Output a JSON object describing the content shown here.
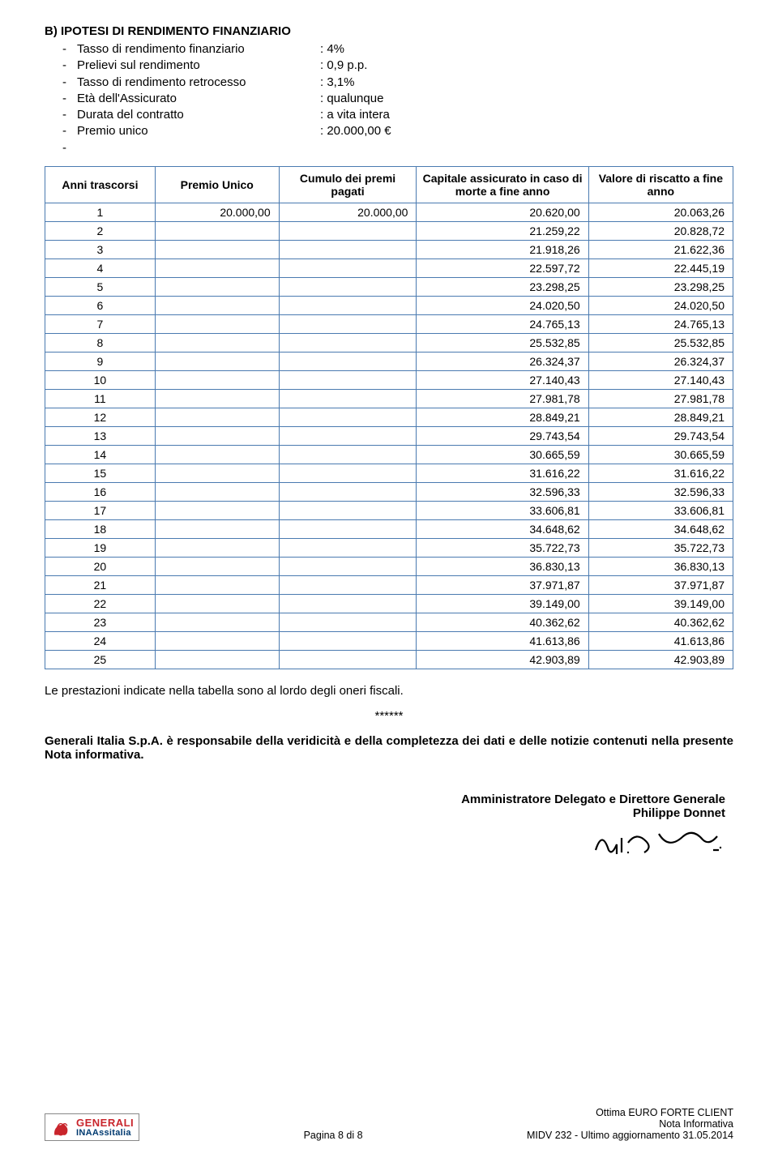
{
  "colors": {
    "border": "#4a7ab0",
    "text": "#000000",
    "background": "#ffffff",
    "logo_red": "#c9252c",
    "logo_blue": "#003a70"
  },
  "section_title": "B) IPOTESI DI RENDIMENTO FINANZIARIO",
  "assumptions": [
    {
      "bullet": "-",
      "label": "Tasso di rendimento finanziario",
      "value": ": 4%"
    },
    {
      "bullet": "-",
      "label": "Prelievi sul rendimento",
      "value": ": 0,9 p.p."
    },
    {
      "bullet": "-",
      "label": "Tasso di rendimento retrocesso",
      "value": ": 3,1%"
    },
    {
      "bullet": "-",
      "label": "Età dell'Assicurato",
      "value": ": qualunque"
    },
    {
      "bullet": "-",
      "label": "Durata del contratto",
      "value": ": a vita intera"
    },
    {
      "bullet": "-",
      "label": "Premio unico",
      "value": ": 20.000,00 €"
    },
    {
      "bullet": "-",
      "label": "",
      "value": ""
    }
  ],
  "table": {
    "headers": [
      "Anni trascorsi",
      "Premio Unico",
      "Cumulo dei premi pagati",
      "Capitale assicurato in caso di morte a fine anno",
      "Valore di riscatto a fine anno"
    ],
    "col_widths": [
      "16%",
      "18%",
      "20%",
      "25%",
      "21%"
    ],
    "rows": [
      [
        "1",
        "20.000,00",
        "20.000,00",
        "20.620,00",
        "20.063,26"
      ],
      [
        "2",
        "",
        "",
        "21.259,22",
        "20.828,72"
      ],
      [
        "3",
        "",
        "",
        "21.918,26",
        "21.622,36"
      ],
      [
        "4",
        "",
        "",
        "22.597,72",
        "22.445,19"
      ],
      [
        "5",
        "",
        "",
        "23.298,25",
        "23.298,25"
      ],
      [
        "6",
        "",
        "",
        "24.020,50",
        "24.020,50"
      ],
      [
        "7",
        "",
        "",
        "24.765,13",
        "24.765,13"
      ],
      [
        "8",
        "",
        "",
        "25.532,85",
        "25.532,85"
      ],
      [
        "9",
        "",
        "",
        "26.324,37",
        "26.324,37"
      ],
      [
        "10",
        "",
        "",
        "27.140,43",
        "27.140,43"
      ],
      [
        "11",
        "",
        "",
        "27.981,78",
        "27.981,78"
      ],
      [
        "12",
        "",
        "",
        "28.849,21",
        "28.849,21"
      ],
      [
        "13",
        "",
        "",
        "29.743,54",
        "29.743,54"
      ],
      [
        "14",
        "",
        "",
        "30.665,59",
        "30.665,59"
      ],
      [
        "15",
        "",
        "",
        "31.616,22",
        "31.616,22"
      ],
      [
        "16",
        "",
        "",
        "32.596,33",
        "32.596,33"
      ],
      [
        "17",
        "",
        "",
        "33.606,81",
        "33.606,81"
      ],
      [
        "18",
        "",
        "",
        "34.648,62",
        "34.648,62"
      ],
      [
        "19",
        "",
        "",
        "35.722,73",
        "35.722,73"
      ],
      [
        "20",
        "",
        "",
        "36.830,13",
        "36.830,13"
      ],
      [
        "21",
        "",
        "",
        "37.971,87",
        "37.971,87"
      ],
      [
        "22",
        "",
        "",
        "39.149,00",
        "39.149,00"
      ],
      [
        "23",
        "",
        "",
        "40.362,62",
        "40.362,62"
      ],
      [
        "24",
        "",
        "",
        "41.613,86",
        "41.613,86"
      ],
      [
        "25",
        "",
        "",
        "42.903,89",
        "42.903,89"
      ]
    ]
  },
  "note": "Le prestazioni indicate nella tabella sono al lordo degli oneri fiscali.",
  "stars": "******",
  "responsibility_bold": "Generali Italia S.p.A. è responsabile della veridicità e della completezza dei dati e delle notizie contenuti nella presente Nota informativa.",
  "signature": {
    "title": "Amministratore Delegato e Direttore Generale",
    "name": "Philippe Donnet"
  },
  "footer": {
    "logo_line1": "GENERALI",
    "logo_line2": "INAAssitalia",
    "center": "Pagina 8 di 8",
    "right_line1": "Ottima EURO FORTE CLIENT",
    "right_line2": "Nota Informativa",
    "right_line3": "MIDV 232 - Ultimo aggiornamento 31.05.2014"
  }
}
